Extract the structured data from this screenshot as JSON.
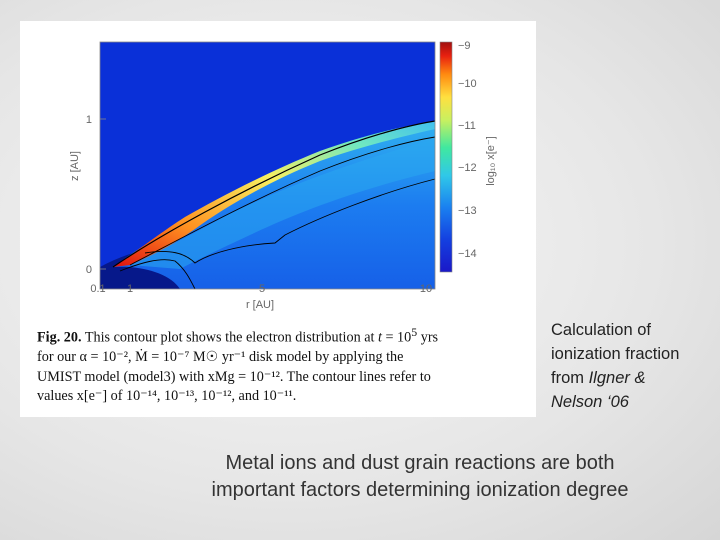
{
  "figure": {
    "axes": {
      "x_label": "r [AU]",
      "y_label": "z [AU]",
      "x_ticks": [
        "0.1",
        "1",
        "5",
        "10"
      ],
      "y_ticks": [
        "0",
        "1"
      ],
      "colorbar_label": "log₁₀ x[e⁻]",
      "colorbar_ticks": [
        "−9",
        "−10",
        "−11",
        "−12",
        "−13",
        "−14"
      ]
    },
    "caption": {
      "fig_label": "Fig. 20.",
      "line1_a": "This contour plot shows the electron distribution at ",
      "t": "t",
      "eq": " = 10",
      "exp5": "5",
      "yrs": " yrs",
      "line2": "for our α = 10⁻², Ṁ = 10⁻⁷ M☉ yr⁻¹ disk model by applying the",
      "line3": "UMIST model (model3) with xMg = 10⁻¹². The contour lines refer to",
      "line4": "values x[e⁻] of 10⁻¹⁴, 10⁻¹³, 10⁻¹², and 10⁻¹¹."
    }
  },
  "side_note": {
    "line1": "Calculation of",
    "line2": "ionization fraction",
    "line3_prefix": "from ",
    "line3_author": "Ilgner &",
    "line4": "Nelson ‘06"
  },
  "main_text": {
    "line1": "Metal ions and dust grain reactions are both",
    "line2": "important factors determining ionization degree"
  },
  "colors": {
    "background_field": "#0a30d8",
    "colorbar_top": "#a01010",
    "colorbar_bottom": "#1a18c8"
  }
}
